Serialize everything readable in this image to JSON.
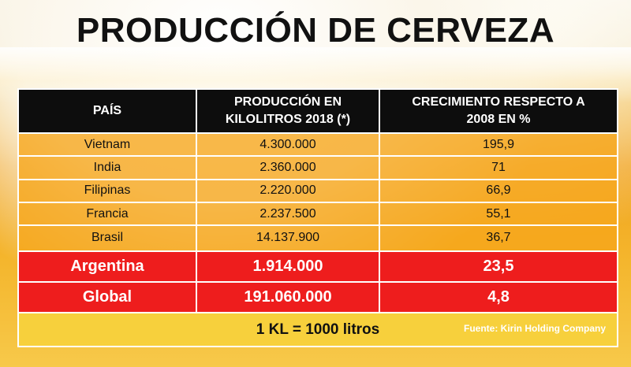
{
  "title": "PRODUCCIÓN DE CERVEZA",
  "table": {
    "headers": [
      "PAÍS",
      "PRODUCCIÓN EN KILOLITROS 2018 (*)",
      "CRECIMIENTO RESPECTO A 2008 EN %"
    ],
    "rows": [
      {
        "pais": "Vietnam",
        "produccion": "4.300.000",
        "crecimiento": "195,9"
      },
      {
        "pais": "India",
        "produccion": "2.360.000",
        "crecimiento": "71"
      },
      {
        "pais": "Filipinas",
        "produccion": "2.220.000",
        "crecimiento": "66,9"
      },
      {
        "pais": "Francia",
        "produccion": "2.237.500",
        "crecimiento": "55,1"
      },
      {
        "pais": "Brasil",
        "produccion": "14.137.900",
        "crecimiento": "36,7"
      }
    ],
    "highlight_rows": [
      {
        "pais": "Argentina",
        "produccion": "1.914.000",
        "crecimiento": "23,5"
      },
      {
        "pais": "Global",
        "produccion": "191.060.000",
        "crecimiento": "4,8"
      }
    ],
    "footer_note": "1 KL = 1000 litros",
    "source": "Fuente: Kirin Holding Company"
  },
  "colors": {
    "header_bg": "#0d0d0d",
    "highlight_bg": "#ee1d1d",
    "row_bg": "#f6a51a",
    "footer_bg": "#f7d23c"
  }
}
